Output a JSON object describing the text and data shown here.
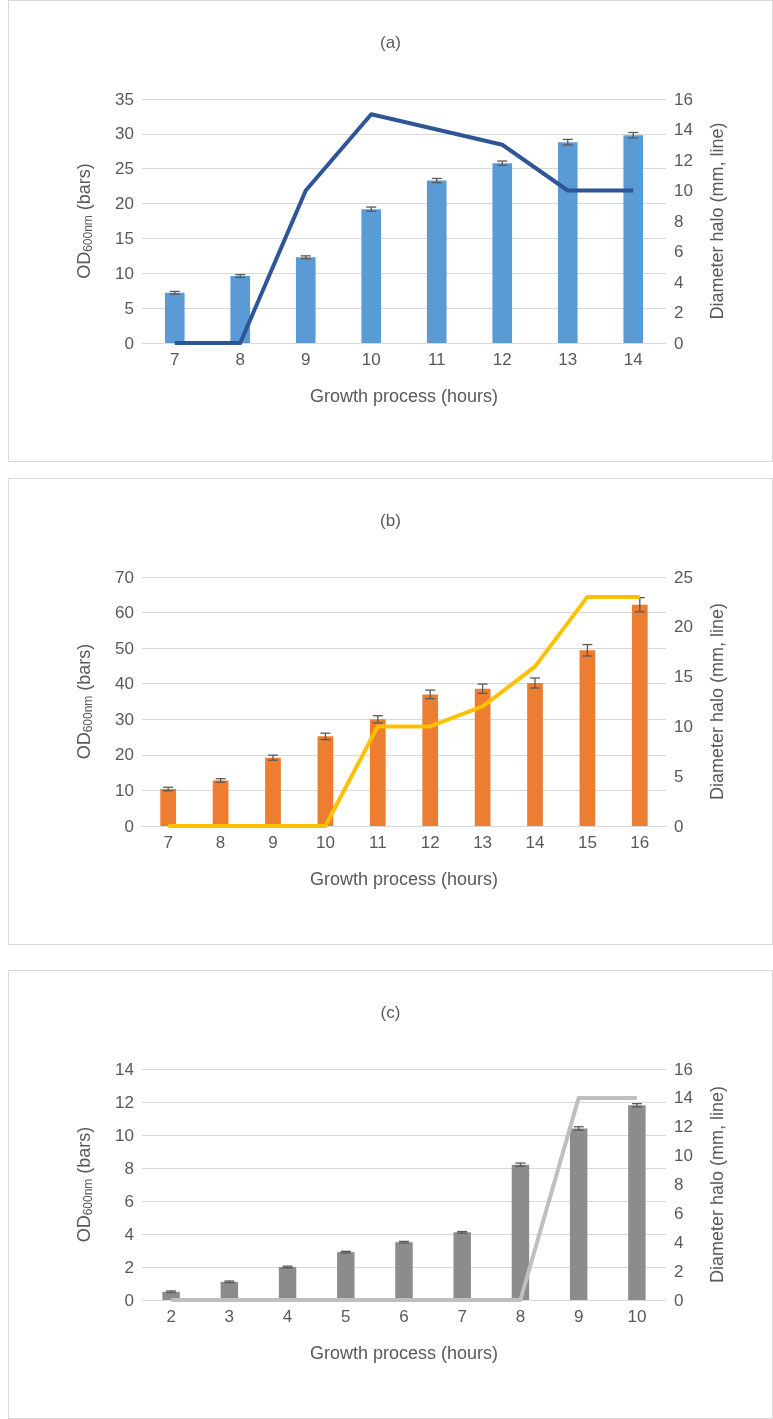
{
  "chart_data": [
    {
      "type": "bar",
      "title": "(a)",
      "xlabel": "Growth process (hours)",
      "ylabel": "OD$_{600nm}$ (bars)",
      "y2label": "Diameter halo (mm, line)",
      "categories": [
        "7",
        "8",
        "9",
        "10",
        "11",
        "12",
        "13",
        "14"
      ],
      "ylim": [
        0,
        35
      ],
      "yticks": [
        0,
        5,
        10,
        15,
        20,
        25,
        30,
        35
      ],
      "y2lim": [
        0,
        16
      ],
      "y2ticks": [
        0,
        2,
        4,
        6,
        8,
        10,
        12,
        14,
        16
      ],
      "grid": "y",
      "series": [
        {
          "color": "#5b9bd5",
          "values": [
            7.2,
            9.6,
            12.3,
            19.2,
            23.3,
            25.8,
            28.8,
            29.8
          ],
          "errors": [
            0.2,
            0.2,
            0.2,
            0.3,
            0.3,
            0.3,
            0.4,
            0.4
          ]
        },
        {
          "type": "line",
          "axis": "y2",
          "color": "#2f5597",
          "values": [
            0,
            0,
            10,
            15,
            14,
            13,
            10,
            10
          ]
        }
      ]
    },
    {
      "type": "bar",
      "title": "(b)",
      "xlabel": "Growth process (hours)",
      "ylabel": "OD$_{600nm}$ (bars)",
      "y2label": "Diameter halo (mm, line)",
      "categories": [
        "7",
        "8",
        "9",
        "10",
        "11",
        "12",
        "13",
        "14",
        "15",
        "16"
      ],
      "ylim": [
        0,
        70
      ],
      "yticks": [
        0,
        10,
        20,
        30,
        40,
        50,
        60,
        70
      ],
      "y2lim": [
        0,
        25
      ],
      "y2ticks": [
        0,
        5,
        10,
        15,
        20,
        25
      ],
      "grid": "y",
      "series": [
        {
          "color": "#ed7d31",
          "values": [
            10.4,
            12.8,
            19.2,
            25.2,
            30,
            37,
            38.6,
            40.2,
            49.4,
            62.2
          ],
          "errors": [
            0.5,
            0.5,
            0.7,
            0.9,
            1,
            1.2,
            1.3,
            1.4,
            1.6,
            2
          ]
        },
        {
          "type": "line",
          "axis": "y2",
          "color": "#ffc000",
          "values": [
            0,
            0,
            0,
            0,
            10,
            10,
            12,
            16,
            23,
            23
          ]
        }
      ]
    },
    {
      "type": "bar",
      "title": "(c)",
      "xlabel": "Growth process (hours)",
      "ylabel": "OD$_{600nm}$ (bars)",
      "y2label": "Diameter halo (mm, line)",
      "categories": [
        "2",
        "3",
        "4",
        "5",
        "6",
        "7",
        "8",
        "9",
        "10"
      ],
      "ylim": [
        0,
        14
      ],
      "yticks": [
        0,
        2,
        4,
        6,
        8,
        10,
        12,
        14
      ],
      "y2lim": [
        0,
        16
      ],
      "y2ticks": [
        0,
        2,
        4,
        6,
        8,
        10,
        12,
        14,
        16
      ],
      "grid": "y",
      "series": [
        {
          "color": "#8c8c8c",
          "values": [
            0.5,
            1.1,
            2.0,
            2.9,
            3.5,
            4.1,
            8.2,
            10.4,
            11.8
          ],
          "errors": [
            0.05,
            0.05,
            0.05,
            0.05,
            0.05,
            0.05,
            0.1,
            0.1,
            0.1
          ]
        },
        {
          "type": "line",
          "axis": "y2",
          "color": "#bfbfbf",
          "values": [
            0,
            0,
            0,
            0,
            0,
            0,
            0,
            14,
            14
          ]
        }
      ]
    }
  ]
}
